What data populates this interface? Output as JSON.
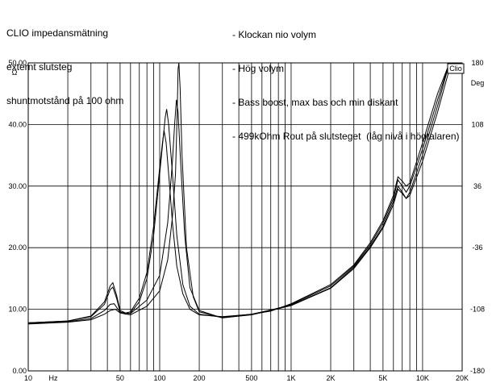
{
  "chart_data": {
    "type": "line",
    "notes_left": [
      "CLIO impedansmätning",
      "externt slutsteg",
      "shuntmotstånd på 100 ohm"
    ],
    "legend": [
      "- Klockan nio volym",
      "- Hög volym",
      "- Bass boost, max bas och min diskant",
      "- 499kOhm Rout på slutsteget  (låg nivå i högtalaren)"
    ],
    "badge": "Clio",
    "xlabel": "Hz",
    "ylabel_left": "Ω",
    "ylabel_right": "Deg",
    "x_scale": "log",
    "xlim": [
      10,
      20000
    ],
    "ylim": [
      0,
      50
    ],
    "y2lim": [
      -180,
      180
    ],
    "grid": true,
    "x_ticks": [
      {
        "value": 10,
        "label": "10"
      },
      {
        "value": 50,
        "label": "50"
      },
      {
        "value": 100,
        "label": "100"
      },
      {
        "value": 200,
        "label": "200"
      },
      {
        "value": 500,
        "label": "500"
      },
      {
        "value": 1000,
        "label": "1K"
      },
      {
        "value": 2000,
        "label": "2K"
      },
      {
        "value": 5000,
        "label": "5K"
      },
      {
        "value": 10000,
        "label": "10K"
      },
      {
        "value": 20000,
        "label": "20K"
      }
    ],
    "y_ticks": [
      {
        "value": 0,
        "label": "0.00"
      },
      {
        "value": 10,
        "label": "10.00"
      },
      {
        "value": 20,
        "label": "20.00"
      },
      {
        "value": 30,
        "label": "30.00"
      },
      {
        "value": 40,
        "label": "40.00"
      },
      {
        "value": 50,
        "label": "50.00"
      }
    ],
    "y2_ticks": [
      {
        "value": -180,
        "label": "-180"
      },
      {
        "value": -108,
        "label": "-108"
      },
      {
        "value": -36,
        "label": "-36"
      },
      {
        "value": 36,
        "label": "36"
      },
      {
        "value": 108,
        "label": "108"
      },
      {
        "value": 180,
        "label": "180"
      }
    ],
    "series": [
      {
        "values": [
          [
            10,
            7.8
          ],
          [
            20,
            8.1
          ],
          [
            30,
            8.8
          ],
          [
            38,
            10.8
          ],
          [
            42,
            13.2
          ],
          [
            44,
            13.6
          ],
          [
            47,
            11.8
          ],
          [
            50,
            9.6
          ],
          [
            55,
            9.2
          ],
          [
            60,
            9.4
          ],
          [
            70,
            11.2
          ],
          [
            80,
            15
          ],
          [
            90,
            22
          ],
          [
            100,
            32
          ],
          [
            110,
            41
          ],
          [
            113,
            42.5
          ],
          [
            117,
            40
          ],
          [
            125,
            32
          ],
          [
            135,
            22
          ],
          [
            150,
            14
          ],
          [
            170,
            10.5
          ],
          [
            200,
            9.2
          ],
          [
            300,
            8.7
          ],
          [
            500,
            9.2
          ],
          [
            700,
            9.8
          ],
          [
            1000,
            10.8
          ],
          [
            2000,
            13.8
          ],
          [
            3000,
            17
          ],
          [
            4000,
            20.5
          ],
          [
            5000,
            24
          ],
          [
            6000,
            28
          ],
          [
            6500,
            31
          ],
          [
            7000,
            30
          ],
          [
            7500,
            29
          ],
          [
            8000,
            30
          ],
          [
            10000,
            36
          ],
          [
            13000,
            44
          ],
          [
            16000,
            51
          ]
        ]
      },
      {
        "values": [
          [
            10,
            7.7
          ],
          [
            20,
            8
          ],
          [
            30,
            8.5
          ],
          [
            38,
            9.8
          ],
          [
            42,
            10.8
          ],
          [
            45,
            10.9
          ],
          [
            50,
            9.5
          ],
          [
            60,
            9.3
          ],
          [
            80,
            11.5
          ],
          [
            100,
            15.5
          ],
          [
            115,
            24
          ],
          [
            125,
            34
          ],
          [
            130,
            40
          ],
          [
            134,
            44
          ],
          [
            138,
            42
          ],
          [
            145,
            33
          ],
          [
            155,
            22
          ],
          [
            170,
            13.5
          ],
          [
            200,
            9.8
          ],
          [
            300,
            8.6
          ],
          [
            500,
            9.2
          ],
          [
            700,
            9.9
          ],
          [
            1000,
            10.7
          ],
          [
            2000,
            13.5
          ],
          [
            3000,
            16.8
          ],
          [
            4000,
            20.2
          ],
          [
            5000,
            23.5
          ],
          [
            6000,
            27.5
          ],
          [
            6500,
            30
          ],
          [
            7000,
            29
          ],
          [
            7500,
            28
          ],
          [
            8000,
            29
          ],
          [
            10000,
            35
          ],
          [
            13000,
            43
          ],
          [
            16000,
            50
          ]
        ]
      },
      {
        "values": [
          [
            10,
            7.8
          ],
          [
            20,
            8.1
          ],
          [
            30,
            8.9
          ],
          [
            38,
            11.2
          ],
          [
            42,
            13.8
          ],
          [
            44,
            14.3
          ],
          [
            47,
            12.3
          ],
          [
            50,
            9.8
          ],
          [
            55,
            9.4
          ],
          [
            60,
            9.6
          ],
          [
            70,
            11.8
          ],
          [
            80,
            16
          ],
          [
            90,
            23.5
          ],
          [
            100,
            33
          ],
          [
            105,
            37
          ],
          [
            108,
            39
          ],
          [
            112,
            37
          ],
          [
            118,
            31
          ],
          [
            125,
            24
          ],
          [
            135,
            17
          ],
          [
            150,
            12.5
          ],
          [
            170,
            10
          ],
          [
            200,
            9.1
          ],
          [
            300,
            8.8
          ],
          [
            500,
            9.2
          ],
          [
            700,
            9.7
          ],
          [
            1000,
            10.9
          ],
          [
            2000,
            14
          ],
          [
            3000,
            17.2
          ],
          [
            4000,
            20.8
          ],
          [
            5000,
            24.4
          ],
          [
            6000,
            28.5
          ],
          [
            6500,
            31.5
          ],
          [
            7000,
            30.8
          ],
          [
            7500,
            30
          ],
          [
            8000,
            30.5
          ],
          [
            10000,
            37
          ],
          [
            13000,
            45
          ],
          [
            16000,
            52
          ]
        ]
      },
      {
        "values": [
          [
            10,
            7.6
          ],
          [
            20,
            7.9
          ],
          [
            30,
            8.3
          ],
          [
            38,
            9.2
          ],
          [
            42,
            9.8
          ],
          [
            46,
            10
          ],
          [
            50,
            9.4
          ],
          [
            60,
            9.1
          ],
          [
            80,
            10.5
          ],
          [
            100,
            13
          ],
          [
            115,
            18
          ],
          [
            125,
            25
          ],
          [
            132,
            32
          ],
          [
            136,
            42
          ],
          [
            138,
            49
          ],
          [
            140,
            52
          ],
          [
            143,
            46
          ],
          [
            148,
            35
          ],
          [
            160,
            20
          ],
          [
            180,
            12
          ],
          [
            200,
            9.6
          ],
          [
            300,
            8.6
          ],
          [
            500,
            9.1
          ],
          [
            700,
            9.8
          ],
          [
            1000,
            10.6
          ],
          [
            2000,
            13.4
          ],
          [
            3000,
            16.6
          ],
          [
            4000,
            20
          ],
          [
            5000,
            23.2
          ],
          [
            6000,
            27
          ],
          [
            6500,
            29.5
          ],
          [
            7000,
            28.8
          ],
          [
            7500,
            28
          ],
          [
            8000,
            28.5
          ],
          [
            10000,
            34
          ],
          [
            13000,
            42
          ],
          [
            16000,
            49
          ]
        ]
      }
    ]
  }
}
